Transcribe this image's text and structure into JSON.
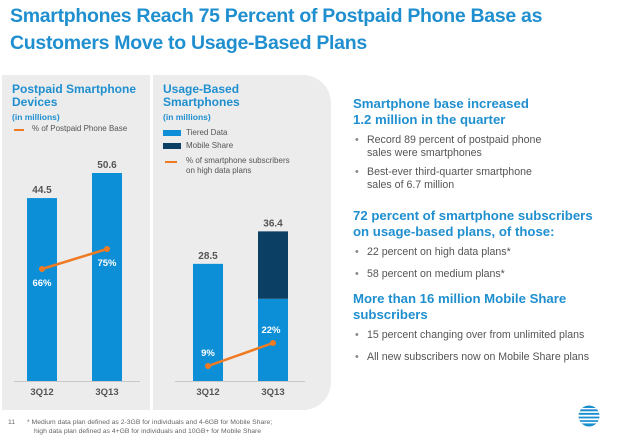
{
  "title": "Smartphones Reach 75 Percent of Postpaid Phone Base as Customers Move to Usage-Based Plans",
  "colors": {
    "accent_blue": "#1f8fcf",
    "bar_blue": "#0c8fd6",
    "dark_navy": "#0b3f63",
    "orange": "#f07a22",
    "panel_bg": "#ececed"
  },
  "chart_data": [
    {
      "type": "bar",
      "title": "Postpaid Smartphone Devices",
      "subtitle": "(in millions)",
      "categories": [
        "3Q12",
        "3Q13"
      ],
      "series": [
        {
          "name": "Postpaid Smartphone Devices",
          "kind": "bar",
          "values": [
            44.5,
            50.6
          ],
          "labels": [
            "44.5",
            "50.6"
          ]
        },
        {
          "name": "% of Postpaid Phone Base",
          "kind": "line",
          "values": [
            66,
            75
          ],
          "labels": [
            "66%",
            "75%"
          ]
        }
      ],
      "legend": [
        "% of Postpaid Phone Base"
      ],
      "ylim": [
        0,
        55
      ],
      "grid": false,
      "legend_position": "top-left"
    },
    {
      "type": "bar",
      "stacked": true,
      "title": "Usage-Based Smartphones",
      "subtitle": "(in millions)",
      "categories": [
        "3Q12",
        "3Q13"
      ],
      "series": [
        {
          "name": "Tiered Data",
          "kind": "bar",
          "values": [
            28.5,
            20.0
          ]
        },
        {
          "name": "Mobile Share",
          "kind": "bar",
          "values": [
            0,
            16.4
          ]
        },
        {
          "name": "% of smartphone subscribers on high data plans",
          "kind": "line",
          "values": [
            9,
            22
          ],
          "labels": [
            "9%",
            "22%"
          ]
        }
      ],
      "totals": [
        28.5,
        36.4
      ],
      "total_labels": [
        "28.5",
        "36.4"
      ],
      "legend": [
        "Tiered Data",
        "Mobile Share",
        "% of smartphone subscribers on high data plans"
      ],
      "ylim": [
        0,
        55
      ],
      "grid": false,
      "legend_position": "top-left"
    }
  ],
  "panels": {
    "p1": {
      "title_line1": "Postpaid Smartphone",
      "title_line2": "Devices",
      "units": "(in millions)",
      "legend_line": "% of Postpaid Phone Base"
    },
    "p2": {
      "title_line1": "Usage-Based",
      "title_line2": "Smartphones",
      "units": "(in millions)",
      "legend_tiered": "Tiered Data",
      "legend_mobile": "Mobile Share",
      "legend_line1": "% of smartphone subscribers",
      "legend_line2": "on high data plans"
    }
  },
  "highlights": [
    {
      "heading_line1": "Smartphone base increased",
      "heading_line2": "1.2 million in the quarter",
      "bullets": [
        {
          "line1": "Record 89 percent of postpaid phone",
          "line2": "sales were smartphones"
        },
        {
          "line1": "Best-ever third-quarter smartphone",
          "line2": "sales of 6.7 million"
        }
      ]
    },
    {
      "heading_line1": "72 percent of smartphone subscribers",
      "heading_line2": "on usage-based plans, of those:",
      "bullets": [
        {
          "line1": "22 percent on high data plans*",
          "line2": ""
        },
        {
          "line1": "58 percent on medium plans*",
          "line2": ""
        }
      ]
    },
    {
      "heading_line1": "More than 16 million Mobile Share",
      "heading_line2": "subscribers",
      "bullets": [
        {
          "line1": "15 percent changing over from unlimited plans",
          "line2": ""
        },
        {
          "line1": "All new subscribers now on Mobile Share plans",
          "line2": ""
        }
      ]
    }
  ],
  "bullet_glyph": "•",
  "footnote": {
    "page_number": "11",
    "line1": "* Medium data plan defined as 2-3GB for individuals and 4-6GB for Mobile Share;",
    "line2": "high data plan defined as 4+GB for individuals and 10GB+ for Mobile Share"
  },
  "logo": {
    "name": "att-globe-logo"
  }
}
